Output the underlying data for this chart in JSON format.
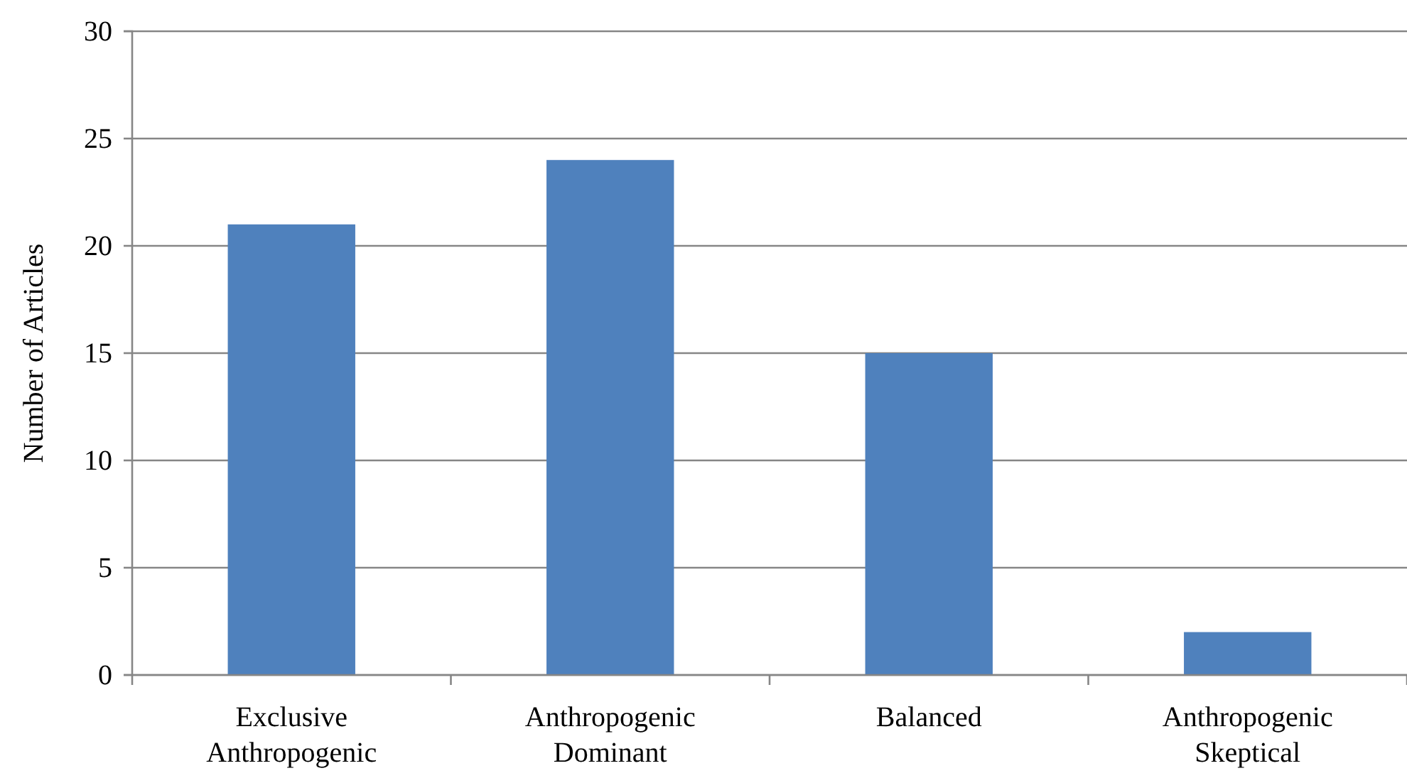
{
  "chart_data": {
    "type": "bar",
    "ylabel": "Number of Articles",
    "categories": [
      "Exclusive\nAnthropogenic",
      "Anthropogenic\nDominant",
      "Balanced",
      "Anthropogenic\nSkeptical"
    ],
    "values": [
      21,
      24,
      15,
      2
    ],
    "color": "#4f81bd",
    "ylim": [
      0,
      30
    ],
    "yticks": [
      0,
      5,
      10,
      15,
      20,
      25,
      30
    ],
    "grid": "y"
  }
}
